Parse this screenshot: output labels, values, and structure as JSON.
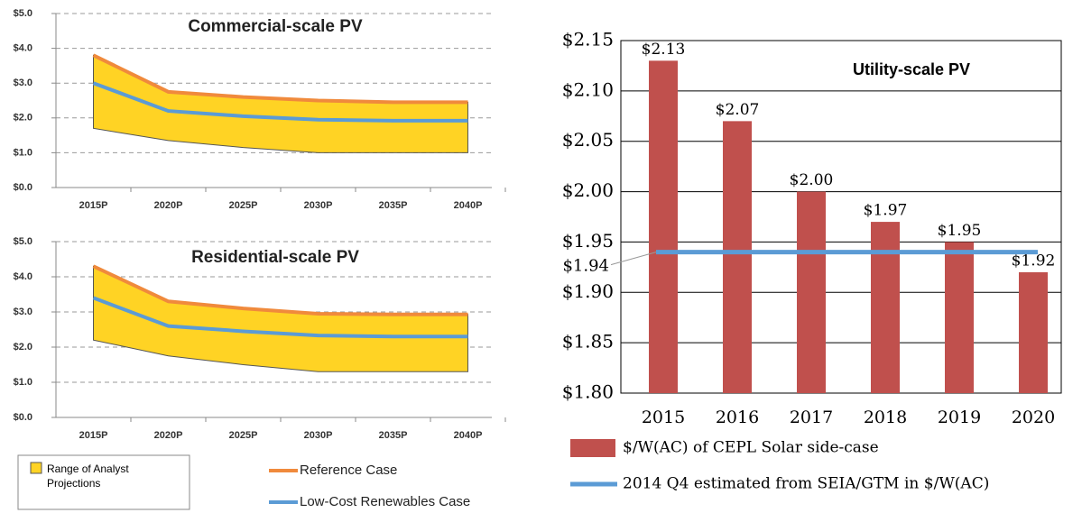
{
  "chart_data": [
    {
      "type": "line",
      "title": "Commercial-scale PV",
      "categories": [
        "2015P",
        "2020P",
        "2025P",
        "2030P",
        "2035P",
        "2040P"
      ],
      "ylim": [
        0,
        5
      ],
      "yticks": [
        {
          "value": 0,
          "label": "$0.0"
        },
        {
          "value": 1,
          "label": "$1.0"
        },
        {
          "value": 2,
          "label": "$2.0"
        },
        {
          "value": 3,
          "label": "$3.0"
        },
        {
          "value": 4,
          "label": "$4.0"
        },
        {
          "value": 5,
          "label": "$5.0"
        }
      ],
      "grid": true,
      "series": [
        {
          "name": "Range of Analyst Projections",
          "kind": "range",
          "color": "#ffd324",
          "lower": [
            1.7,
            1.35,
            1.15,
            1.0,
            1.0,
            1.0
          ],
          "upper": [
            3.8,
            2.75,
            2.6,
            2.5,
            2.45,
            2.45
          ]
        },
        {
          "name": "Reference Case",
          "color": "#f08a3c",
          "values": [
            3.8,
            2.75,
            2.6,
            2.5,
            2.45,
            2.45
          ]
        },
        {
          "name": "Low-Cost Renewables Case",
          "color": "#5b9bd5",
          "values": [
            3.0,
            2.2,
            2.05,
            1.95,
            1.92,
            1.92
          ]
        }
      ]
    },
    {
      "type": "line",
      "title": "Residential-scale PV",
      "categories": [
        "2015P",
        "2020P",
        "2025P",
        "2030P",
        "2035P",
        "2040P"
      ],
      "ylim": [
        0,
        5
      ],
      "yticks": [
        {
          "value": 0,
          "label": "$0.0"
        },
        {
          "value": 1,
          "label": "$1.0"
        },
        {
          "value": 2,
          "label": "$2.0"
        },
        {
          "value": 3,
          "label": "$3.0"
        },
        {
          "value": 4,
          "label": "$4.0"
        },
        {
          "value": 5,
          "label": "$5.0"
        }
      ],
      "grid": true,
      "series": [
        {
          "kind": "range",
          "color": "#ffd324",
          "lower": [
            2.2,
            1.75,
            1.5,
            1.3,
            1.3,
            1.3
          ],
          "upper": [
            4.3,
            3.3,
            3.1,
            2.95,
            2.93,
            2.93
          ]
        },
        {
          "color": "#f08a3c",
          "values": [
            4.3,
            3.3,
            3.1,
            2.95,
            2.93,
            2.93
          ]
        },
        {
          "color": "#5b9bd5",
          "values": [
            3.4,
            2.6,
            2.45,
            2.33,
            2.3,
            2.3
          ]
        }
      ]
    },
    {
      "type": "bar",
      "title": "Utility-scale PV",
      "categories": [
        "2015",
        "2016",
        "2017",
        "2018",
        "2019",
        "2020"
      ],
      "ylim": [
        1.8,
        2.15
      ],
      "yticks": [
        {
          "value": 1.8,
          "label": "$1.80"
        },
        {
          "value": 1.85,
          "label": "$1.85"
        },
        {
          "value": 1.9,
          "label": "$1.90"
        },
        {
          "value": 1.95,
          "label": "$1.95"
        },
        {
          "value": 2.0,
          "label": "$2.00"
        },
        {
          "value": 2.05,
          "label": "$2.05"
        },
        {
          "value": 2.1,
          "label": "$2.10"
        },
        {
          "value": 2.15,
          "label": "$2.15"
        }
      ],
      "grid": true,
      "series": [
        {
          "name": "$/W(AC) of CEPL Solar side-case",
          "kind": "bar",
          "color": "#c0504d",
          "values": [
            2.13,
            2.07,
            2.0,
            1.97,
            1.95,
            1.92
          ],
          "value_labels": [
            "$2.13",
            "$2.07",
            "$2.00",
            "$1.97",
            "$1.95",
            "$1.92"
          ]
        },
        {
          "name": "2014 Q4 estimated from SEIA/GTM in $/W(AC)",
          "kind": "line",
          "color": "#5b9bd5",
          "values": [
            1.94,
            1.94,
            1.94,
            1.94,
            1.94,
            1.94
          ]
        }
      ],
      "annotation": {
        "value": 1.94,
        "text": "$1.94"
      }
    }
  ]
}
